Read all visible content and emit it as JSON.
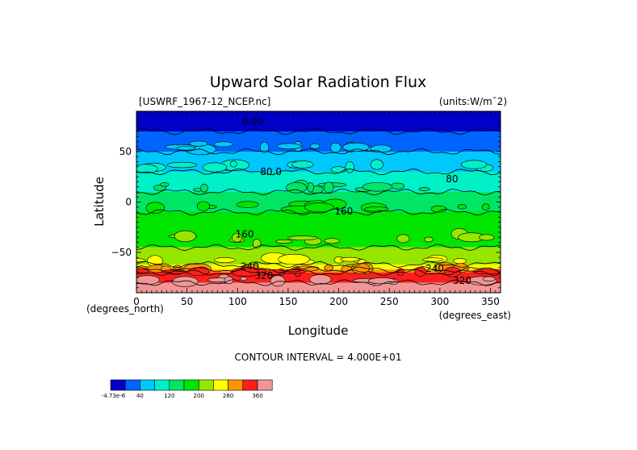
{
  "chart_data": {
    "type": "contour",
    "title": "Upward Solar Radiation Flux",
    "file_label": "[USWRF_1967-12_NCEP.nc]",
    "units_label": "(units:W/m¯2)",
    "xlabel": "Longitude",
    "ylabel": "Latitude",
    "x_units": "(degrees_east)",
    "y_units": "(degrees_north)",
    "xlim": [
      0,
      360
    ],
    "ylim": [
      -90,
      90
    ],
    "x_ticks": [
      0,
      50,
      100,
      150,
      200,
      250,
      300,
      350
    ],
    "y_ticks": [
      50,
      0,
      -50
    ],
    "contour_interval_text": "CONTOUR INTERVAL = 4.000E+01",
    "contour_labels": [
      {
        "text": "0.00",
        "lon": 115,
        "lat": 80
      },
      {
        "text": "80.0",
        "lon": 133,
        "lat": 30
      },
      {
        "text": "160",
        "lon": 205,
        "lat": -9
      },
      {
        "text": "160",
        "lon": 107,
        "lat": -32
      },
      {
        "text": "240",
        "lon": 112,
        "lat": -64
      },
      {
        "text": "320",
        "lon": 126,
        "lat": -73
      },
      {
        "text": "80",
        "lon": 312,
        "lat": 23
      },
      {
        "text": "240",
        "lon": 295,
        "lat": -66
      },
      {
        "text": "320",
        "lon": 322,
        "lat": -78
      }
    ],
    "latitude_bands": [
      {
        "lat_from": 90,
        "lat_to": 70,
        "level": 0
      },
      {
        "lat_from": 70,
        "lat_to": 50,
        "level": 1
      },
      {
        "lat_from": 50,
        "lat_to": 30,
        "level": 2
      },
      {
        "lat_from": 30,
        "lat_to": 10,
        "level": 3
      },
      {
        "lat_from": 10,
        "lat_to": -10,
        "level": 4
      },
      {
        "lat_from": -10,
        "lat_to": -45,
        "level": 5
      },
      {
        "lat_from": -45,
        "lat_to": -62,
        "level": 6
      },
      {
        "lat_from": -62,
        "lat_to": -67,
        "level": 7
      },
      {
        "lat_from": -67,
        "lat_to": -70,
        "level": 8
      },
      {
        "lat_from": -70,
        "lat_to": -80,
        "level": 9
      },
      {
        "lat_from": -80,
        "lat_to": -90,
        "level": 10
      }
    ],
    "colorbar": {
      "colors": [
        "#0000c8",
        "#0064ff",
        "#00c8ff",
        "#00f0c8",
        "#00e664",
        "#00e600",
        "#96e600",
        "#ffff00",
        "#ff9600",
        "#ff1e1e",
        "#f09696"
      ],
      "tick_labels": [
        {
          "text": "-4.73e-6",
          "after_box": 0
        },
        {
          "text": "40",
          "after_box": 1
        },
        {
          "text": "120",
          "after_box": 3
        },
        {
          "text": "200",
          "after_box": 5
        },
        {
          "text": "280",
          "after_box": 7
        },
        {
          "text": "360",
          "after_box": 9
        }
      ]
    }
  }
}
